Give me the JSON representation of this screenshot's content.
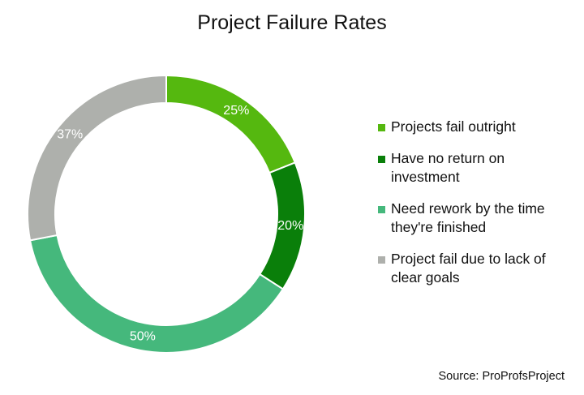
{
  "chart_data": {
    "type": "pie",
    "title": "Project Failure Rates",
    "series": [
      {
        "name": "Projects fail outright",
        "value": 25,
        "label": "25%",
        "color": "#55B80F"
      },
      {
        "name": "Have no return on investment",
        "value": 20,
        "label": "20%",
        "color": "#0A7F0A"
      },
      {
        "name": "Need rework by the time they're finished",
        "value": 50,
        "label": "50%",
        "color": "#45B87C"
      },
      {
        "name": "Project fail due to lack of clear goals",
        "value": 37,
        "label": "37%",
        "color": "#AEB0AC"
      }
    ],
    "legend_position": "right",
    "source": "Source: ProProfsProject"
  }
}
